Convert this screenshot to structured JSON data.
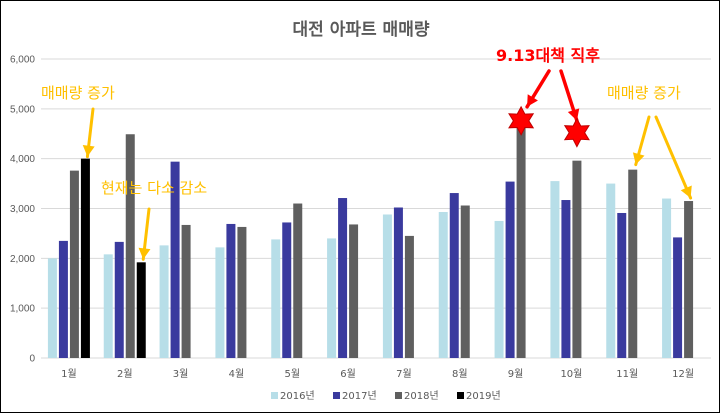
{
  "chart_data": {
    "type": "bar",
    "title": "대전 아파트 매매량",
    "categories": [
      "1월",
      "2월",
      "3월",
      "4월",
      "5월",
      "6월",
      "7월",
      "8월",
      "9월",
      "10월",
      "11월",
      "12월"
    ],
    "ylim": [
      0,
      6000
    ],
    "yticks": [
      "0",
      "1,000",
      "2,000",
      "3,000",
      "4,000",
      "5,000",
      "6,000"
    ],
    "grid": true,
    "legend_position": "bottom",
    "series": [
      {
        "name": "2016년",
        "color": "#B7DEE8",
        "values": [
          2000,
          2080,
          2260,
          2220,
          2380,
          2400,
          2880,
          2930,
          2750,
          3550,
          3500,
          3200
        ]
      },
      {
        "name": "2017년",
        "color": "#3A3A9E",
        "values": [
          2350,
          2330,
          3940,
          2690,
          2720,
          3210,
          3020,
          3310,
          3540,
          3170,
          2910,
          2420
        ]
      },
      {
        "name": "2018년",
        "color": "#5F5F5F",
        "values": [
          3760,
          4490,
          2670,
          2630,
          3100,
          2680,
          2450,
          3060,
          4800,
          3960,
          3780,
          3150
        ]
      },
      {
        "name": "2019년",
        "color": "#000000",
        "values": [
          4000,
          1920,
          null,
          null,
          null,
          null,
          null,
          null,
          null,
          null,
          null,
          null
        ]
      }
    ],
    "annotations": [
      {
        "text": "매매량 증가",
        "color": "#FFC000"
      },
      {
        "text": "현재는 다소 감소",
        "color": "#FFC000"
      },
      {
        "text": "9.13대책 직후",
        "color": "#FF0000"
      },
      {
        "text": "매매량 증가",
        "color": "#FFC000"
      }
    ]
  }
}
